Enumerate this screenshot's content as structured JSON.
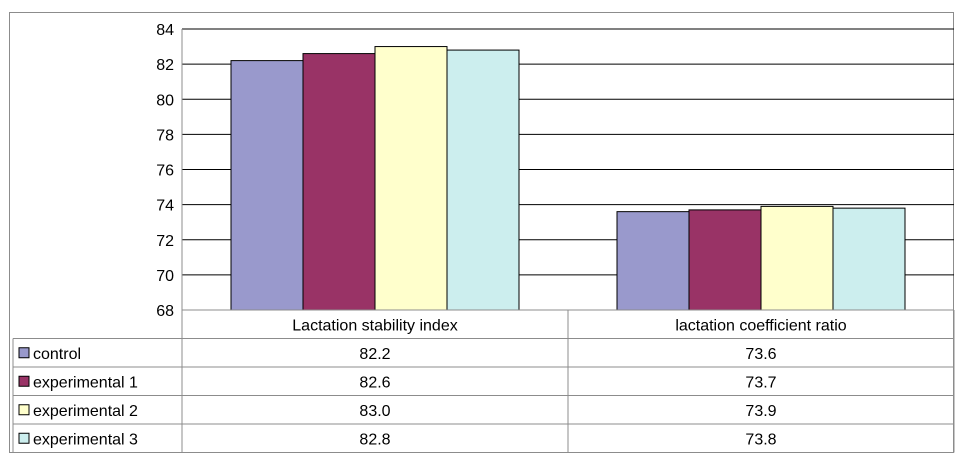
{
  "chart_data": {
    "type": "bar",
    "title": "",
    "xlabel": "",
    "ylabel": "",
    "ylim": [
      68,
      84
    ],
    "yticks": [
      68,
      70,
      72,
      74,
      76,
      78,
      80,
      82,
      84
    ],
    "grid": true,
    "legend": "data-table",
    "categories": [
      "Lactation stability index",
      "lactation coefficient ratio"
    ],
    "series": [
      {
        "name": "control",
        "color": "#9999cc",
        "values": [
          82.2,
          73.6
        ],
        "labels": [
          "82.2",
          "73.6"
        ]
      },
      {
        "name": "experimental 1",
        "color": "#993366",
        "values": [
          82.6,
          73.7
        ],
        "labels": [
          "82.6",
          "73.7"
        ]
      },
      {
        "name": "experimental 2",
        "color": "#ffffcc",
        "values": [
          83.0,
          73.9
        ],
        "labels": [
          "83.0",
          "73.9"
        ]
      },
      {
        "name": "experimental 3",
        "color": "#cceeee",
        "values": [
          82.8,
          73.8
        ],
        "labels": [
          "82.8",
          "73.8"
        ]
      }
    ]
  }
}
